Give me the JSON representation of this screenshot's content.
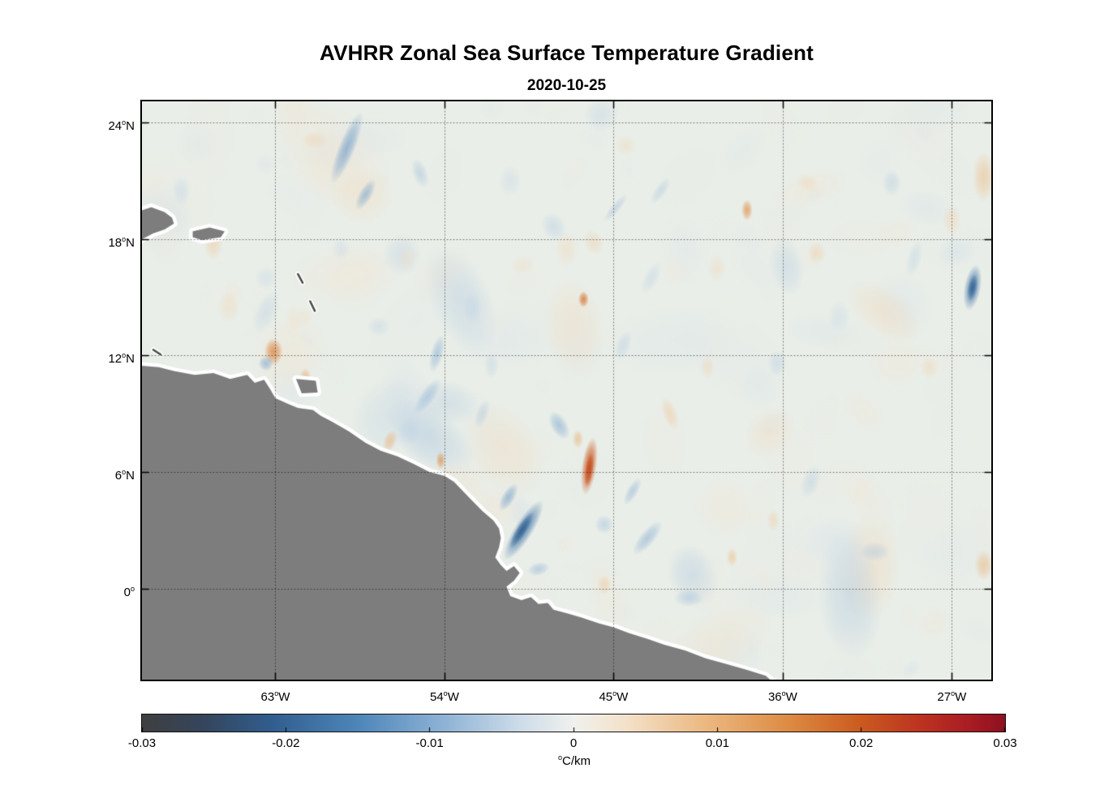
{
  "chart_data": {
    "type": "heatmap",
    "title": "AVHRR Zonal Sea Surface Temperature Gradient",
    "subtitle": "2020-10-25",
    "axes": {
      "lon_range": [
        -70.1,
        -24.9
      ],
      "lat_range": [
        -4.7,
        25.1
      ],
      "grid": "dotted",
      "x_ticks": [
        {
          "value": -63,
          "label": "63",
          "suffix": "W"
        },
        {
          "value": -54,
          "label": "54",
          "suffix": "W"
        },
        {
          "value": -45,
          "label": "45",
          "suffix": "W"
        },
        {
          "value": -36,
          "label": "36",
          "suffix": "W"
        },
        {
          "value": -27,
          "label": "27",
          "suffix": "W"
        }
      ],
      "y_ticks": [
        {
          "value": 24,
          "label": "24",
          "suffix": "N"
        },
        {
          "value": 18,
          "label": "18",
          "suffix": "N"
        },
        {
          "value": 12,
          "label": "12",
          "suffix": "N"
        },
        {
          "value": 6,
          "label": "6",
          "suffix": "N"
        },
        {
          "value": 0,
          "label": "0",
          "suffix": ""
        }
      ]
    },
    "colorbar": {
      "min": -0.03,
      "max": 0.03,
      "ticks": [
        "-0.03",
        "-0.02",
        "-0.01",
        "0",
        "0.01",
        "0.02",
        "0.03"
      ],
      "unit_degree": "o",
      "unit_main": "C/km",
      "stops": [
        [
          0.0,
          "#3f3f3f"
        ],
        [
          0.07,
          "#35455c"
        ],
        [
          0.15,
          "#315e8e"
        ],
        [
          0.25,
          "#4e86ba"
        ],
        [
          0.35,
          "#8fb3d6"
        ],
        [
          0.44,
          "#cfdde9"
        ],
        [
          0.5,
          "#f0f1ee"
        ],
        [
          0.56,
          "#f4e2cb"
        ],
        [
          0.65,
          "#ecba83"
        ],
        [
          0.75,
          "#dd8b43"
        ],
        [
          0.83,
          "#cc5c20"
        ],
        [
          0.9,
          "#bd3420"
        ],
        [
          0.96,
          "#a81c24"
        ],
        [
          1.0,
          "#8e1020"
        ]
      ]
    },
    "sea_color": "#e9eee8",
    "land_color": "#7d7d7d",
    "coast_fringe_color": "#ffffff",
    "land_polygons": [
      {
        "name": "south-america-mainland",
        "points": [
          [
            -70.4,
            11.5
          ],
          [
            -69.2,
            11.4
          ],
          [
            -68.4,
            11.2
          ],
          [
            -67.3,
            11.0
          ],
          [
            -66.3,
            11.1
          ],
          [
            -65.4,
            10.8
          ],
          [
            -64.5,
            11.0
          ],
          [
            -64.1,
            10.6
          ],
          [
            -63.6,
            10.75
          ],
          [
            -63.3,
            10.3
          ],
          [
            -63.0,
            9.8
          ],
          [
            -62.3,
            9.5
          ],
          [
            -61.8,
            9.3
          ],
          [
            -61.0,
            9.2
          ],
          [
            -60.6,
            8.9
          ],
          [
            -60.0,
            8.6
          ],
          [
            -59.1,
            8.1
          ],
          [
            -58.2,
            7.5
          ],
          [
            -57.4,
            7.1
          ],
          [
            -56.5,
            6.8
          ],
          [
            -55.6,
            6.4
          ],
          [
            -54.8,
            6.0
          ],
          [
            -54.0,
            5.8
          ],
          [
            -53.5,
            5.5
          ],
          [
            -53.0,
            5.0
          ],
          [
            -52.5,
            4.5
          ],
          [
            -52.0,
            4.0
          ],
          [
            -51.4,
            3.5
          ],
          [
            -51.1,
            3.1
          ],
          [
            -51.0,
            2.6
          ],
          [
            -51.1,
            2.1
          ],
          [
            -51.3,
            1.6
          ],
          [
            -51.0,
            1.2
          ],
          [
            -50.7,
            0.9
          ],
          [
            -50.3,
            1.15
          ],
          [
            -50.0,
            0.8
          ],
          [
            -50.3,
            0.4
          ],
          [
            -50.7,
            0.1
          ],
          [
            -50.5,
            -0.4
          ],
          [
            -49.9,
            -0.6
          ],
          [
            -49.4,
            -0.45
          ],
          [
            -49.0,
            -0.8
          ],
          [
            -48.5,
            -0.75
          ],
          [
            -48.2,
            -1.1
          ],
          [
            -47.4,
            -1.3
          ],
          [
            -46.7,
            -1.5
          ],
          [
            -45.8,
            -1.8
          ],
          [
            -45.0,
            -2.0
          ],
          [
            -44.2,
            -2.3
          ],
          [
            -43.2,
            -2.6
          ],
          [
            -42.3,
            -2.9
          ],
          [
            -41.2,
            -3.2
          ],
          [
            -40.1,
            -3.6
          ],
          [
            -39.0,
            -3.9
          ],
          [
            -37.9,
            -4.2
          ],
          [
            -36.9,
            -4.5
          ],
          [
            -36.1,
            -5.2
          ],
          [
            -35.9,
            -6.5
          ],
          [
            -71.5,
            -6.5
          ],
          [
            -71.5,
            11.5
          ]
        ]
      },
      {
        "name": "hispaniola",
        "points": [
          [
            -70.4,
            19.4
          ],
          [
            -69.6,
            19.65
          ],
          [
            -68.9,
            19.4
          ],
          [
            -68.5,
            19.1
          ],
          [
            -68.4,
            18.8
          ],
          [
            -68.9,
            18.5
          ],
          [
            -69.5,
            18.3
          ],
          [
            -70.1,
            18.0
          ],
          [
            -70.4,
            17.9
          ]
        ]
      },
      {
        "name": "puerto-rico",
        "points": [
          [
            -67.4,
            18.4
          ],
          [
            -66.5,
            18.6
          ],
          [
            -65.7,
            18.4
          ],
          [
            -65.9,
            18.1
          ],
          [
            -66.9,
            17.95
          ],
          [
            -67.4,
            18.1
          ]
        ]
      },
      {
        "name": "trinidad",
        "points": [
          [
            -61.9,
            10.8
          ],
          [
            -60.85,
            10.7
          ],
          [
            -60.75,
            10.1
          ],
          [
            -61.6,
            10.05
          ]
        ]
      }
    ],
    "island_dashes": [
      [
        [
          -61.8,
          16.2
        ],
        [
          -61.55,
          15.75
        ]
      ],
      [
        [
          -61.15,
          14.8
        ],
        [
          -60.9,
          14.3
        ]
      ],
      [
        [
          -69.5,
          12.3
        ],
        [
          -69.1,
          12.05
        ]
      ]
    ],
    "features": [
      {
        "lon": -59.2,
        "lat": 22.7,
        "v": -0.017,
        "rx": 0.45,
        "ry": 2.0,
        "rot": 22
      },
      {
        "lon": -58.2,
        "lat": 20.3,
        "v": -0.015,
        "rx": 0.35,
        "ry": 0.9,
        "rot": 30
      },
      {
        "lon": -55.3,
        "lat": 21.4,
        "v": -0.01,
        "rx": 0.4,
        "ry": 0.8,
        "rot": -20
      },
      {
        "lon": -60.9,
        "lat": 23.1,
        "v": 0.008,
        "rx": 0.7,
        "ry": 0.5,
        "rot": 0
      },
      {
        "lon": -66.3,
        "lat": 17.8,
        "v": 0.01,
        "rx": 0.5,
        "ry": 0.9,
        "rot": 0
      },
      {
        "lon": -63.1,
        "lat": 12.2,
        "v": 0.022,
        "rx": 0.5,
        "ry": 0.7,
        "rot": 0
      },
      {
        "lon": -63.5,
        "lat": 11.6,
        "v": -0.015,
        "rx": 0.4,
        "ry": 0.4,
        "rot": 0
      },
      {
        "lon": -61.4,
        "lat": 10.9,
        "v": 0.015,
        "rx": 0.3,
        "ry": 0.45,
        "rot": 0
      },
      {
        "lon": -54.4,
        "lat": 12.1,
        "v": -0.013,
        "rx": 0.35,
        "ry": 1.0,
        "rot": 15
      },
      {
        "lon": -54.9,
        "lat": 9.9,
        "v": -0.012,
        "rx": 0.4,
        "ry": 1.1,
        "rot": 35
      },
      {
        "lon": -46.6,
        "lat": 14.9,
        "v": 0.024,
        "rx": 0.28,
        "ry": 0.42,
        "rot": 0
      },
      {
        "lon": -44.9,
        "lat": 19.6,
        "v": -0.01,
        "rx": 0.25,
        "ry": 0.9,
        "rot": 40
      },
      {
        "lon": -37.9,
        "lat": 19.5,
        "v": 0.02,
        "rx": 0.3,
        "ry": 0.55,
        "rot": 0
      },
      {
        "lon": -25.9,
        "lat": 15.5,
        "v": -0.024,
        "rx": 0.45,
        "ry": 1.2,
        "rot": 10
      },
      {
        "lon": -25.9,
        "lat": 15.5,
        "v": -0.028,
        "rx": 0.25,
        "ry": 0.7,
        "rot": 10
      },
      {
        "lon": -25.3,
        "lat": 21.2,
        "v": 0.012,
        "rx": 0.6,
        "ry": 1.3,
        "rot": 0
      },
      {
        "lon": -30.2,
        "lat": 20.9,
        "v": -0.008,
        "rx": 0.5,
        "ry": 0.7,
        "rot": 0
      },
      {
        "lon": -34.2,
        "lat": 17.3,
        "v": 0.009,
        "rx": 0.5,
        "ry": 0.6,
        "rot": 0
      },
      {
        "lon": -46.3,
        "lat": 6.3,
        "v": 0.028,
        "rx": 0.4,
        "ry": 1.5,
        "rot": 8
      },
      {
        "lon": -46.3,
        "lat": 6.1,
        "v": 0.03,
        "rx": 0.22,
        "ry": 0.9,
        "rot": 8
      },
      {
        "lon": -46.9,
        "lat": 7.7,
        "v": 0.014,
        "rx": 0.3,
        "ry": 0.5,
        "rot": 0
      },
      {
        "lon": -47.9,
        "lat": 8.4,
        "v": -0.014,
        "rx": 0.45,
        "ry": 0.8,
        "rot": -30
      },
      {
        "lon": -49.8,
        "lat": 3.0,
        "v": -0.024,
        "rx": 0.5,
        "ry": 1.8,
        "rot": 32
      },
      {
        "lon": -49.9,
        "lat": 3.0,
        "v": -0.029,
        "rx": 0.28,
        "ry": 1.1,
        "rot": 32
      },
      {
        "lon": -50.6,
        "lat": 4.7,
        "v": -0.016,
        "rx": 0.35,
        "ry": 0.8,
        "rot": 30
      },
      {
        "lon": -56.9,
        "lat": 7.6,
        "v": 0.014,
        "rx": 0.35,
        "ry": 0.6,
        "rot": 20
      },
      {
        "lon": -54.2,
        "lat": 6.6,
        "v": 0.02,
        "rx": 0.25,
        "ry": 0.45,
        "rot": 0
      },
      {
        "lon": -43.2,
        "lat": 2.6,
        "v": -0.013,
        "rx": 0.4,
        "ry": 1.1,
        "rot": 40
      },
      {
        "lon": -41.0,
        "lat": -0.5,
        "v": -0.01,
        "rx": 0.8,
        "ry": 0.45,
        "rot": 0
      },
      {
        "lon": -38.7,
        "lat": 1.6,
        "v": 0.012,
        "rx": 0.3,
        "ry": 0.5,
        "rot": 0
      },
      {
        "lon": -31.1,
        "lat": 1.9,
        "v": -0.009,
        "rx": 0.8,
        "ry": 0.5,
        "rot": 0
      },
      {
        "lon": -25.3,
        "lat": 1.2,
        "v": 0.013,
        "rx": 0.5,
        "ry": 0.8,
        "rot": 0
      },
      {
        "lon": -28.2,
        "lat": 11.4,
        "v": 0.008,
        "rx": 0.5,
        "ry": 0.6,
        "rot": 0
      },
      {
        "lon": -36.3,
        "lat": 11.6,
        "v": -0.008,
        "rx": 0.5,
        "ry": 0.7,
        "rot": 0
      },
      {
        "lon": -40.0,
        "lat": 11.4,
        "v": 0.008,
        "rx": 0.4,
        "ry": 0.6,
        "rot": 0
      },
      {
        "lon": -42.0,
        "lat": 9.0,
        "v": 0.01,
        "rx": 0.4,
        "ry": 0.9,
        "rot": -20
      },
      {
        "lon": -44.5,
        "lat": 12.5,
        "v": -0.008,
        "rx": 0.4,
        "ry": 0.8,
        "rot": 20
      },
      {
        "lon": -52.5,
        "lat": 14.5,
        "v": -0.007,
        "rx": 0.5,
        "ry": 0.9,
        "rot": 0
      },
      {
        "lon": -57.5,
        "lat": 13.5,
        "v": -0.007,
        "rx": 0.6,
        "ry": 0.5,
        "rot": 0
      },
      {
        "lon": -65.5,
        "lat": 14.5,
        "v": 0.007,
        "rx": 0.6,
        "ry": 0.8,
        "rot": 0
      },
      {
        "lon": -68.0,
        "lat": 20.5,
        "v": -0.007,
        "rx": 0.5,
        "ry": 0.8,
        "rot": 0
      },
      {
        "lon": -63.5,
        "lat": 16.0,
        "v": -0.006,
        "rx": 0.6,
        "ry": 0.6,
        "rot": 0
      },
      {
        "lon": -47.5,
        "lat": 17.5,
        "v": 0.007,
        "rx": 0.6,
        "ry": 0.9,
        "rot": 0
      },
      {
        "lon": -50.5,
        "lat": 21.0,
        "v": -0.006,
        "rx": 0.6,
        "ry": 0.8,
        "rot": 0
      },
      {
        "lon": -43.0,
        "lat": 16.0,
        "v": -0.007,
        "rx": 0.4,
        "ry": 0.9,
        "rot": 25
      },
      {
        "lon": -39.5,
        "lat": 16.5,
        "v": 0.007,
        "rx": 0.5,
        "ry": 0.7,
        "rot": 0
      },
      {
        "lon": -33.0,
        "lat": 14.0,
        "v": -0.006,
        "rx": 0.6,
        "ry": 0.8,
        "rot": 0
      },
      {
        "lon": -29.0,
        "lat": 17.0,
        "v": -0.007,
        "rx": 0.4,
        "ry": 1.0,
        "rot": 15
      },
      {
        "lon": -27.0,
        "lat": 19.0,
        "v": 0.008,
        "rx": 0.5,
        "ry": 0.8,
        "rot": 0
      },
      {
        "lon": -34.5,
        "lat": 5.5,
        "v": -0.008,
        "rx": 0.5,
        "ry": 0.9,
        "rot": 20
      },
      {
        "lon": -36.5,
        "lat": 3.5,
        "v": 0.009,
        "rx": 0.35,
        "ry": 0.6,
        "rot": 0
      },
      {
        "lon": -44.0,
        "lat": 5.0,
        "v": -0.012,
        "rx": 0.3,
        "ry": 0.8,
        "rot": 30
      },
      {
        "lon": -45.5,
        "lat": 3.3,
        "v": -0.01,
        "rx": 0.5,
        "ry": 0.5,
        "rot": 0
      },
      {
        "lon": -52.0,
        "lat": 9.0,
        "v": -0.009,
        "rx": 0.35,
        "ry": 0.8,
        "rot": 20
      },
      {
        "lon": -51.5,
        "lat": 11.5,
        "v": -0.007,
        "rx": 0.4,
        "ry": 0.7,
        "rot": 0
      },
      {
        "lon": -59.5,
        "lat": 17.5,
        "v": -0.006,
        "rx": 0.5,
        "ry": 0.6,
        "rot": 0
      },
      {
        "lon": -61.5,
        "lat": 14.0,
        "v": 0.006,
        "rx": 0.5,
        "ry": 0.5,
        "rot": 0
      },
      {
        "lon": -49.0,
        "lat": 1.0,
        "v": -0.012,
        "rx": 0.6,
        "ry": 0.35,
        "rot": -15
      },
      {
        "lon": -45.5,
        "lat": 0.2,
        "v": 0.01,
        "rx": 0.4,
        "ry": 0.5,
        "rot": 0
      },
      {
        "lon": -42.5,
        "lat": 20.5,
        "v": -0.009,
        "rx": 0.3,
        "ry": 0.8,
        "rot": 35
      },
      {
        "lon": -56.0,
        "lat": 17.0,
        "v": 0.006,
        "rx": 0.5,
        "ry": 0.7,
        "rot": 0
      }
    ],
    "texture": {
      "seed": 1234,
      "count": 300,
      "amp": 0.0065
    }
  }
}
